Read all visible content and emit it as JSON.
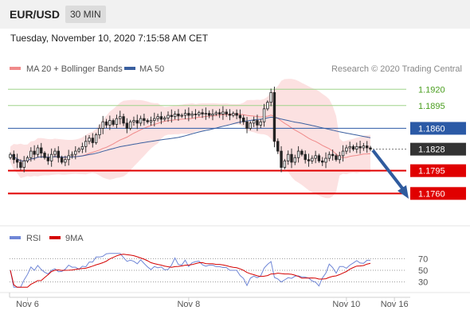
{
  "header": {
    "pair": "EUR/USD",
    "timeframe": "30 MIN",
    "datetime": "Tuesday, November 10, 2020 7:15:58 AM CET"
  },
  "colors": {
    "resistance": "#4a9e1f",
    "support": "#e00000",
    "pivot": "#2b5aa6",
    "ma50": "#3a5f9f",
    "bollinger_fill": "#fbdcdc",
    "ma20": "#f08a8a",
    "last_bg": "#333333",
    "rsi": "#6f86d6",
    "rsi_ma": "#d40000"
  },
  "chart_data": [
    {
      "type": "candlestick",
      "legend": [
        {
          "name": "MA 20 + Bollinger Bands",
          "color": "#f08a8a"
        },
        {
          "name": "MA 50",
          "color": "#2b5aa6"
        }
      ],
      "attribution": "Research © 2020 Trading Central",
      "legend_position": "top",
      "ylim": [
        1.1725,
        1.1935
      ],
      "levels": [
        {
          "value": 1.192,
          "label": "1.1920",
          "kind": "resistance"
        },
        {
          "value": 1.1895,
          "label": "1.1895",
          "kind": "resistance"
        },
        {
          "value": 1.186,
          "label": "1.1860",
          "kind": "pivot"
        },
        {
          "value": 1.1828,
          "label": "1.1828",
          "kind": "last"
        },
        {
          "value": 1.1795,
          "label": "1.1795",
          "kind": "support"
        },
        {
          "value": 1.176,
          "label": "1.1760",
          "kind": "support"
        }
      ],
      "x_ticks": [
        {
          "label": "Nov 6",
          "index": 5
        },
        {
          "label": "Nov 8",
          "index": 52
        },
        {
          "label": "Nov 10",
          "index": 98
        },
        {
          "label": "Nov 16",
          "index": 112
        }
      ],
      "close": [
        1.182,
        1.1812,
        1.1808,
        1.18,
        1.181,
        1.1815,
        1.1825,
        1.182,
        1.183,
        1.1822,
        1.1815,
        1.181,
        1.182,
        1.1825,
        1.1815,
        1.1808,
        1.1812,
        1.1818,
        1.182,
        1.1825,
        1.1828,
        1.1832,
        1.184,
        1.1845,
        1.1838,
        1.185,
        1.186,
        1.187,
        1.1865,
        1.1872,
        1.1866,
        1.1875,
        1.1878,
        1.1868,
        1.186,
        1.187,
        1.1872,
        1.1868,
        1.1875,
        1.1872,
        1.187,
        1.1872,
        1.1875,
        1.1878,
        1.1874,
        1.1876,
        1.188,
        1.1878,
        1.1882,
        1.1879,
        1.188,
        1.1883,
        1.188,
        1.1882,
        1.1881,
        1.1884,
        1.1882,
        1.1883,
        1.188,
        1.1882,
        1.1884,
        1.1882,
        1.1885,
        1.1882,
        1.188,
        1.1883,
        1.188,
        1.1876,
        1.187,
        1.186,
        1.1868,
        1.1872,
        1.1865,
        1.187,
        1.189,
        1.19,
        1.1915,
        1.184,
        1.1825,
        1.18,
        1.181,
        1.182,
        1.1808,
        1.1815,
        1.1825,
        1.182,
        1.1812,
        1.181,
        1.1814,
        1.1818,
        1.181,
        1.1808,
        1.1814,
        1.182,
        1.1818,
        1.1812,
        1.1818,
        1.1825,
        1.183,
        1.1832,
        1.1828,
        1.1832,
        1.183,
        1.1833,
        1.183,
        1.1828
      ],
      "rsi": {
        "levels": [
          70,
          50,
          30
        ],
        "ylim": [
          20,
          80
        ],
        "legend": [
          {
            "name": "RSI",
            "color": "#6f86d6"
          },
          {
            "name": "9MA",
            "color": "#d40000"
          }
        ]
      }
    }
  ]
}
